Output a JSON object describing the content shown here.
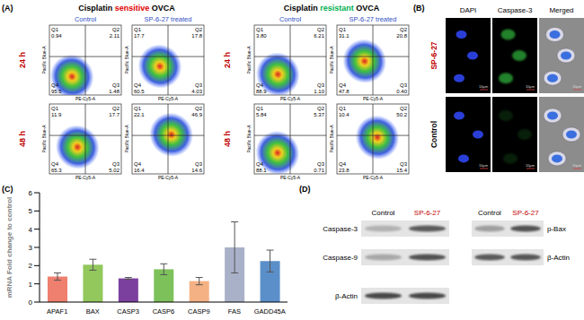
{
  "panel_labels": [
    "(A)",
    "(B)",
    "(C)",
    "(D)"
  ],
  "panel_A": {
    "groups": [
      {
        "title": "Cisplatin sensitive OVCA",
        "highlight": "sensitive",
        "highlight_color": "#e00000",
        "plots": [
          [
            {
              "Q1": "0.94",
              "Q2": "2.11",
              "Q3": "1.48",
              "Q4": "95.5"
            },
            {
              "Q1": "17.7",
              "Q2": "17.8",
              "Q3": "4.03",
              "Q4": "60.5"
            }
          ],
          [
            {
              "Q1": "11.9",
              "Q2": "17.7",
              "Q3": "5.02",
              "Q4": "65.3"
            },
            {
              "Q1": "22.1",
              "Q2": "46.9",
              "Q3": "14.6",
              "Q4": "16.4"
            }
          ]
        ]
      },
      {
        "title": "Cisplatin resistant OVCA",
        "highlight": "resistant",
        "highlight_color": "#00b050",
        "plots": [
          [
            {
              "Q1": "3.80",
              "Q2": "6.21",
              "Q3": "1.10",
              "Q4": "88.9"
            },
            {
              "Q1": "31.1",
              "Q2": "20.8",
              "Q3": "0.40",
              "Q4": "47.8"
            }
          ],
          [
            {
              "Q1": "5.84",
              "Q2": "5.37",
              "Q3": "0.71",
              "Q4": "88.1"
            },
            {
              "Q1": "10.4",
              "Q2": "50.2",
              "Q3": "15.4",
              "Q4": "23.8"
            }
          ]
        ]
      }
    ],
    "columns": [
      "Control",
      "SP-6-27 treated"
    ],
    "column_color": "#2f4fc4",
    "rows": [
      "24 h",
      "48 h"
    ],
    "row_color": "#c00000",
    "x_label": "PE-Cy5-A",
    "y_label": "Pacific Blue-A"
  },
  "panel_B": {
    "columns": [
      "DAPI",
      "Caspase-3",
      "Merged"
    ],
    "rows": [
      {
        "label": "SP-6-27",
        "color": "#c00000"
      },
      {
        "label": "Control",
        "color": "#000000"
      }
    ],
    "scale_bar": "10µm"
  },
  "chart_data": {
    "type": "bar",
    "y_label": "mRNA Fold change to control",
    "categories": [
      "APAF1",
      "BAX",
      "CASP3",
      "CASP6",
      "CASP9",
      "FAS",
      "GADD45A"
    ],
    "values": [
      1.4,
      2.05,
      1.3,
      1.8,
      1.15,
      3.0,
      2.25
    ],
    "errors": [
      0.2,
      0.3,
      0.05,
      0.3,
      0.2,
      1.4,
      0.6
    ],
    "colors": [
      "#ef7f6f",
      "#92c85c",
      "#7b3f9e",
      "#7dc15b",
      "#f4b183",
      "#a9b1c9",
      "#5b8fc9"
    ],
    "ylim": [
      0,
      6
    ],
    "yticks": [
      0,
      1,
      2,
      3,
      4,
      5,
      6
    ],
    "grid": false
  },
  "panel_D": {
    "blots": [
      {
        "columns": [
          "Control",
          "SP-6-27"
        ],
        "column_colors": [
          "#000000",
          "#c00000"
        ],
        "rows": [
          "Caspase-3",
          "Caspase-9",
          "β-Actin"
        ]
      },
      {
        "columns": [
          "Control",
          "SP-6-27"
        ],
        "column_colors": [
          "#000000",
          "#c00000"
        ],
        "rows": [
          "p-Bax",
          "β-Actin"
        ]
      }
    ]
  }
}
